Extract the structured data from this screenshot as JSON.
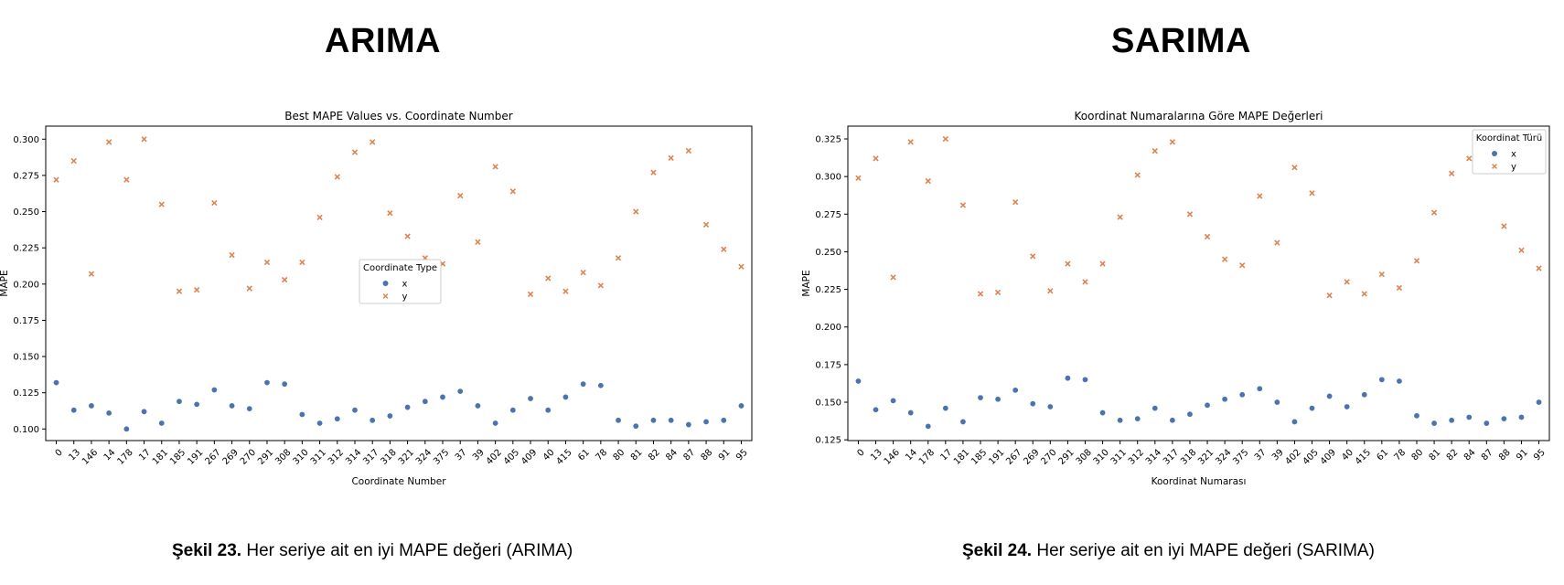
{
  "panels": [
    {
      "heading": "ARIMA",
      "caption_bold": "Şekil 23.",
      "caption_rest": " Her seriye ait en iyi MAPE değeri (ARIMA)"
    },
    {
      "heading": "SARIMA",
      "caption_bold": "Şekil 24.",
      "caption_rest": " Her seriye ait en iyi MAPE değeri (SARIMA)"
    }
  ],
  "chart_data": [
    {
      "type": "scatter",
      "title": "Best MAPE Values vs. Coordinate Number",
      "xlabel": "Coordinate Number",
      "ylabel": "MAPE",
      "ylim": [
        0.092,
        0.309
      ],
      "yticks": [
        0.1,
        0.125,
        0.15,
        0.175,
        0.2,
        0.225,
        0.25,
        0.275,
        0.3
      ],
      "grid": false,
      "legend": {
        "title": "Coordinate Type",
        "placement": "center"
      },
      "categories": [
        "0",
        "13",
        "146",
        "14",
        "178",
        "17",
        "181",
        "185",
        "191",
        "267",
        "269",
        "270",
        "291",
        "308",
        "310",
        "311",
        "312",
        "314",
        "317",
        "318",
        "321",
        "324",
        "375",
        "37",
        "39",
        "402",
        "405",
        "409",
        "40",
        "415",
        "61",
        "78",
        "80",
        "81",
        "82",
        "84",
        "87",
        "88",
        "91",
        "95"
      ],
      "series": [
        {
          "name": "x",
          "color": "#4c72b0",
          "marker": "circle",
          "values": [
            0.132,
            0.113,
            0.116,
            0.111,
            0.1,
            0.112,
            0.104,
            0.119,
            0.117,
            0.127,
            0.116,
            0.114,
            0.132,
            0.131,
            0.11,
            0.104,
            0.107,
            0.113,
            0.106,
            0.109,
            0.115,
            0.119,
            0.122,
            0.126,
            0.116,
            0.104,
            0.113,
            0.121,
            0.113,
            0.122,
            0.131,
            0.13,
            0.106,
            0.102,
            0.106,
            0.106,
            0.103,
            0.105,
            0.106,
            0.116
          ]
        },
        {
          "name": "y",
          "color": "#dd8452",
          "marker": "x",
          "values": [
            0.272,
            0.285,
            0.207,
            0.298,
            0.272,
            0.3,
            0.255,
            0.195,
            0.196,
            0.256,
            0.22,
            0.197,
            0.215,
            0.203,
            0.215,
            0.246,
            0.274,
            0.291,
            0.298,
            0.249,
            0.233,
            0.218,
            0.214,
            0.261,
            0.229,
            0.281,
            0.264,
            0.193,
            0.204,
            0.195,
            0.208,
            0.199,
            0.218,
            0.25,
            0.277,
            0.287,
            0.292,
            0.241,
            0.224,
            0.212
          ]
        }
      ]
    },
    {
      "type": "scatter",
      "title": "Koordinat Numaralarına Göre MAPE Değerleri",
      "xlabel": "Koordinat Numarası",
      "ylabel": "MAPE",
      "ylim": [
        0.1245,
        0.3335
      ],
      "yticks": [
        0.125,
        0.15,
        0.175,
        0.2,
        0.225,
        0.25,
        0.275,
        0.3,
        0.325
      ],
      "grid": false,
      "legend": {
        "title": "Koordinat Türü",
        "placement": "top-right"
      },
      "categories": [
        "0",
        "13",
        "146",
        "14",
        "178",
        "17",
        "181",
        "185",
        "191",
        "267",
        "269",
        "270",
        "291",
        "308",
        "310",
        "311",
        "312",
        "314",
        "317",
        "318",
        "321",
        "324",
        "375",
        "37",
        "39",
        "402",
        "405",
        "409",
        "40",
        "415",
        "61",
        "78",
        "80",
        "81",
        "82",
        "84",
        "87",
        "88",
        "91",
        "95"
      ],
      "series": [
        {
          "name": "x",
          "color": "#4c72b0",
          "marker": "circle",
          "values": [
            0.164,
            0.145,
            0.151,
            0.143,
            0.134,
            0.146,
            0.137,
            0.153,
            0.152,
            0.158,
            0.149,
            0.147,
            0.166,
            0.165,
            0.143,
            0.138,
            0.139,
            0.146,
            0.138,
            0.142,
            0.148,
            0.152,
            0.155,
            0.159,
            0.15,
            0.137,
            0.146,
            0.154,
            0.147,
            0.155,
            0.165,
            0.164,
            0.141,
            0.136,
            0.138,
            0.14,
            0.136,
            0.139,
            0.14,
            0.15
          ]
        },
        {
          "name": "y",
          "color": "#dd8452",
          "marker": "x",
          "values": [
            0.299,
            0.312,
            0.233,
            0.323,
            0.297,
            0.325,
            0.281,
            0.222,
            0.223,
            0.283,
            0.247,
            0.224,
            0.242,
            0.23,
            0.242,
            0.273,
            0.301,
            0.317,
            0.323,
            0.275,
            0.26,
            0.245,
            0.241,
            0.287,
            0.256,
            0.306,
            0.289,
            0.221,
            0.23,
            0.222,
            0.235,
            0.226,
            0.244,
            0.276,
            0.302,
            0.312,
            0.317,
            0.267,
            0.251,
            0.239
          ]
        }
      ]
    }
  ]
}
